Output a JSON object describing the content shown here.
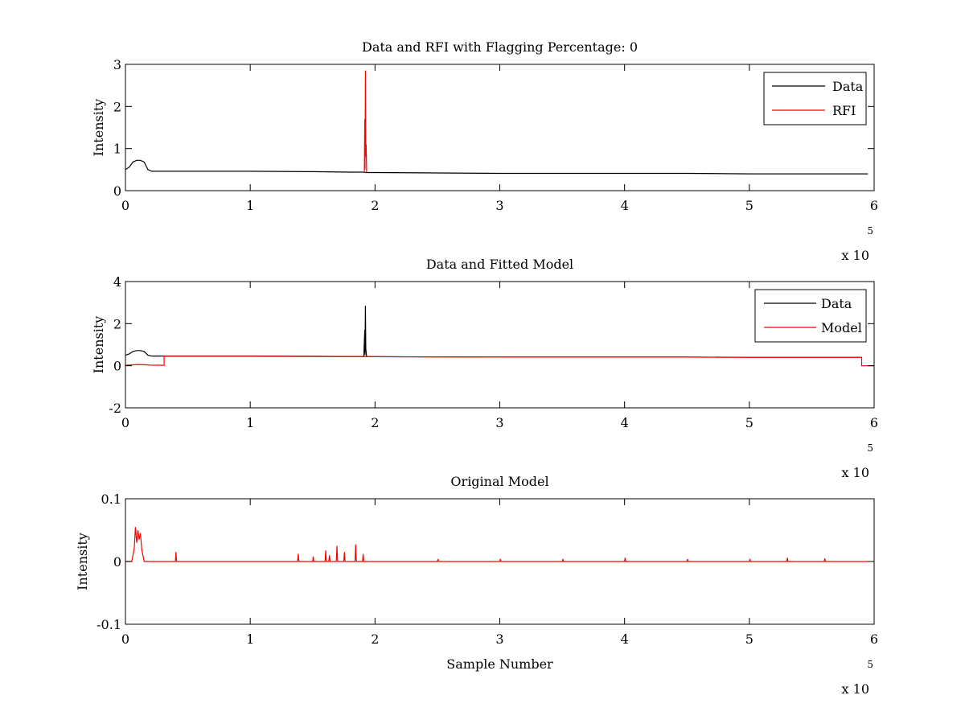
{
  "colors": {
    "data": "#000000",
    "rfi": "#ff0000",
    "model": "#ff0000",
    "axes": "#000000",
    "background": "#ffffff"
  },
  "chart_data": [
    {
      "type": "line",
      "title": "Data and RFI with Flagging Percentage: 0",
      "xlabel": "",
      "ylabel": "Intensity",
      "xlim": [
        0,
        600000
      ],
      "ylim": [
        0,
        3
      ],
      "xticks": [
        0,
        1,
        2,
        3,
        4,
        5,
        6
      ],
      "xtick_labels": [
        "0",
        "1",
        "2",
        "3",
        "4",
        "5",
        "6"
      ],
      "yticks": [
        0,
        1,
        2,
        3
      ],
      "ytick_labels": [
        "0",
        "1",
        "2",
        "3"
      ],
      "x_exponent": {
        "base": "x 10",
        "power": "5"
      },
      "grid": false,
      "legend": "top-right",
      "series": [
        {
          "name": "Data",
          "color": "#000000",
          "x": [
            0,
            3000,
            6000,
            9000,
            12000,
            15000,
            18000,
            21000,
            30000,
            50000,
            100000,
            150000,
            180000,
            191000,
            193000,
            200000,
            250000,
            300000,
            350000,
            400000,
            450000,
            500000,
            550000,
            595000
          ],
          "y": [
            0.5,
            0.56,
            0.68,
            0.72,
            0.72,
            0.68,
            0.5,
            0.46,
            0.46,
            0.46,
            0.46,
            0.45,
            0.44,
            0.44,
            0.43,
            0.43,
            0.42,
            0.41,
            0.41,
            0.41,
            0.41,
            0.4,
            0.4,
            0.4
          ]
        },
        {
          "name": "RFI",
          "color": "#ff0000",
          "x": [
            191500,
            191800,
            192000,
            192300,
            192600,
            192900,
            193300
          ],
          "y": [
            0.43,
            1.7,
            0.5,
            2.85,
            0.8,
            1.1,
            0.43
          ]
        }
      ]
    },
    {
      "type": "line",
      "title": "Data and Fitted Model",
      "xlabel": "",
      "ylabel": "Intensity",
      "xlim": [
        0,
        600000
      ],
      "ylim": [
        -2,
        4
      ],
      "xticks": [
        0,
        1,
        2,
        3,
        4,
        5,
        6
      ],
      "xtick_labels": [
        "0",
        "1",
        "2",
        "3",
        "4",
        "5",
        "6"
      ],
      "yticks": [
        -2,
        0,
        2,
        4
      ],
      "ytick_labels": [
        "-2",
        "0",
        "2",
        "4"
      ],
      "x_exponent": {
        "base": "x 10",
        "power": "5"
      },
      "grid": false,
      "legend": "top-right",
      "series": [
        {
          "name": "Data",
          "color": "#000000",
          "x": [
            0,
            3000,
            6000,
            9000,
            12000,
            15000,
            18000,
            21000,
            30000,
            50000,
            100000,
            150000,
            180000,
            191000,
            191800,
            192000,
            192300,
            192600,
            193300,
            200000,
            250000,
            300000,
            350000,
            400000,
            450000,
            500000,
            550000,
            590000
          ],
          "y": [
            0.5,
            0.56,
            0.68,
            0.72,
            0.72,
            0.68,
            0.5,
            0.46,
            0.46,
            0.46,
            0.46,
            0.45,
            0.44,
            0.44,
            1.7,
            0.5,
            2.85,
            0.8,
            0.43,
            0.43,
            0.42,
            0.41,
            0.41,
            0.41,
            0.41,
            0.4,
            0.4,
            0.4
          ]
        },
        {
          "name": "Model",
          "color": "#ff0000",
          "x": [
            0,
            5000,
            10000,
            15000,
            20000,
            31000,
            31000,
            40000,
            100000,
            150000,
            200000,
            250000,
            300000,
            350000,
            400000,
            450000,
            500000,
            550000,
            590000,
            590000,
            600000
          ],
          "y": [
            0.02,
            0.04,
            0.06,
            0.05,
            0.03,
            0.02,
            0.45,
            0.45,
            0.45,
            0.44,
            0.43,
            0.42,
            0.41,
            0.41,
            0.41,
            0.41,
            0.4,
            0.4,
            0.4,
            0.0,
            0.0
          ]
        }
      ]
    },
    {
      "type": "line",
      "title": "Original Model",
      "xlabel": "Sample Number",
      "ylabel": "Intensity",
      "xlim": [
        0,
        600000
      ],
      "ylim": [
        -0.1,
        0.1
      ],
      "xticks": [
        0,
        1,
        2,
        3,
        4,
        5,
        6
      ],
      "xtick_labels": [
        "0",
        "1",
        "2",
        "3",
        "4",
        "5",
        "6"
      ],
      "yticks": [
        -0.1,
        0,
        0.1
      ],
      "ytick_labels": [
        "-0.1",
        "0",
        "0.1"
      ],
      "x_exponent": {
        "base": "x 10",
        "power": "5"
      },
      "grid": false,
      "legend": "none",
      "series": [
        {
          "color": "#ff0000",
          "x": [
            0,
            5000,
            7000,
            8000,
            9000,
            10000,
            11000,
            12000,
            13000,
            14000,
            15000,
            40000,
            40500,
            41000,
            138000,
            138500,
            139000,
            150000,
            150500,
            151000,
            160000,
            160500,
            161000,
            163000,
            163500,
            164000,
            169000,
            169500,
            170000,
            175000,
            175500,
            176000,
            184000,
            184500,
            185000,
            190000,
            190500,
            191000,
            250000,
            250500,
            251000,
            300000,
            300500,
            301000,
            350000,
            350500,
            351000,
            400000,
            400500,
            401000,
            450000,
            450500,
            451000,
            500000,
            500500,
            501000,
            530000,
            530500,
            531000,
            560000,
            560500,
            561000,
            595000
          ],
          "y": [
            0,
            0,
            0.02,
            0.055,
            0.03,
            0.05,
            0.035,
            0.045,
            0.02,
            0.01,
            0,
            0,
            0.015,
            0,
            0,
            0.012,
            0,
            0,
            0.008,
            0,
            0,
            0.018,
            0,
            0,
            0.01,
            0,
            0,
            0.025,
            0,
            0,
            0.015,
            0,
            0,
            0.027,
            0,
            0,
            0.012,
            0,
            0,
            0.004,
            0,
            0,
            0.004,
            0,
            0,
            0.004,
            0,
            0,
            0.006,
            0,
            0,
            0.004,
            0,
            0,
            0.004,
            0,
            0,
            0.006,
            0,
            0,
            0.005,
            0,
            0
          ]
        }
      ]
    }
  ]
}
